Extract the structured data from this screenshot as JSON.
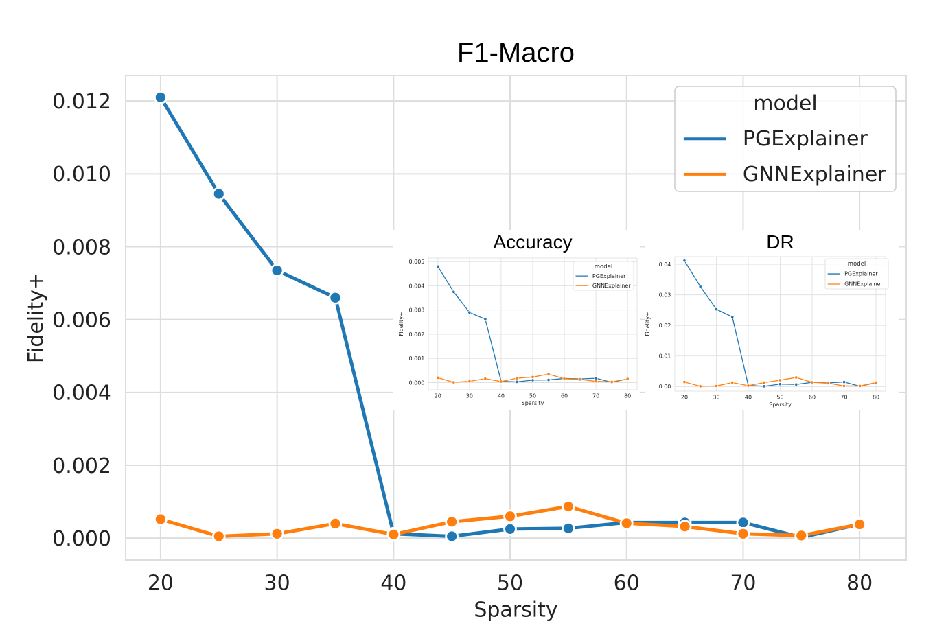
{
  "colors": {
    "pg": "#1f77b4",
    "gnn": "#ff7f0e",
    "grid": "#dddddd",
    "frame": "#dddddd"
  },
  "chart_data": [
    {
      "id": "main",
      "type": "line",
      "title": "F1-Macro",
      "xlabel": "Sparsity",
      "ylabel": "Fidelity+",
      "xlim": [
        17,
        84
      ],
      "ylim": [
        -0.0006,
        0.0127
      ],
      "xticks": [
        20,
        30,
        40,
        50,
        60,
        70,
        80
      ],
      "yticks": [
        0,
        0.002,
        0.004,
        0.006,
        0.008,
        0.01,
        0.012
      ],
      "ytick_labels": [
        "0.000",
        "0.002",
        "0.004",
        "0.006",
        "0.008",
        "0.010",
        "0.012"
      ],
      "legend": {
        "title": "model",
        "position": "top-right"
      },
      "x": [
        20,
        25,
        30,
        35,
        40,
        45,
        50,
        55,
        60,
        65,
        70,
        75,
        80
      ],
      "series": [
        {
          "name": "PGExplainer",
          "values": [
            0.0121,
            0.00945,
            0.00735,
            0.0066,
            0.00012,
            5e-05,
            0.00025,
            0.00027,
            0.00043,
            0.00043,
            0.00043,
            2e-05,
            0.00038
          ]
        },
        {
          "name": "GNNExplainer",
          "values": [
            0.00052,
            5e-05,
            0.00012,
            0.0004,
            0.0001,
            0.00045,
            0.0006,
            0.00087,
            0.00041,
            0.00032,
            0.00012,
            7e-05,
            0.00038
          ]
        }
      ]
    },
    {
      "id": "accuracy",
      "type": "line",
      "title": "Accuracy",
      "xlabel": "Sparsity",
      "ylabel": "Fidelity+",
      "xlim": [
        17,
        83
      ],
      "ylim": [
        -0.0003,
        0.00515
      ],
      "xticks": [
        20,
        30,
        40,
        50,
        60,
        70,
        80
      ],
      "yticks": [
        0,
        0.001,
        0.002,
        0.003,
        0.004,
        0.005
      ],
      "ytick_labels": [
        "0.000",
        "0.001",
        "0.002",
        "0.003",
        "0.004",
        "0.005"
      ],
      "legend": {
        "title": "model",
        "position": "top-right"
      },
      "x": [
        20,
        25,
        30,
        35,
        40,
        45,
        50,
        55,
        60,
        65,
        70,
        75,
        80
      ],
      "series": [
        {
          "name": "PGExplainer",
          "values": [
            0.0048,
            0.00375,
            0.0029,
            0.00262,
            5e-05,
            3e-05,
            0.0001,
            0.00011,
            0.00017,
            0.00015,
            0.00018,
            1e-05,
            0.00015
          ]
        },
        {
          "name": "GNNExplainer",
          "values": [
            0.0002,
            1e-05,
            5e-05,
            0.00016,
            4e-05,
            0.00018,
            0.00023,
            0.00035,
            0.00016,
            0.00013,
            5e-05,
            3e-05,
            0.00015
          ]
        }
      ]
    },
    {
      "id": "dr",
      "type": "line",
      "title": "DR",
      "xlabel": "Sparsity",
      "ylabel": "Fidelity+",
      "xlim": [
        17,
        83
      ],
      "ylim": [
        -0.0015,
        0.0425
      ],
      "xticks": [
        20,
        30,
        40,
        50,
        60,
        70,
        80
      ],
      "yticks": [
        0,
        0.01,
        0.02,
        0.03,
        0.04
      ],
      "ytick_labels": [
        "0.00",
        "0.01",
        "0.02",
        "0.03",
        "0.04"
      ],
      "legend": {
        "title": "model",
        "position": "top-right"
      },
      "x": [
        20,
        25,
        30,
        35,
        40,
        45,
        50,
        55,
        60,
        65,
        70,
        75,
        80
      ],
      "series": [
        {
          "name": "PGExplainer",
          "values": [
            0.0412,
            0.0327,
            0.0253,
            0.0228,
            0.0004,
            0.0001,
            0.0008,
            0.0007,
            0.0014,
            0.0012,
            0.0015,
            0.0001,
            0.0013
          ]
        },
        {
          "name": "GNNExplainer",
          "values": [
            0.0015,
            0.0001,
            0.0002,
            0.0013,
            0.0003,
            0.0013,
            0.0021,
            0.003,
            0.0014,
            0.0011,
            0.0002,
            0.0002,
            0.0013
          ]
        }
      ]
    }
  ]
}
